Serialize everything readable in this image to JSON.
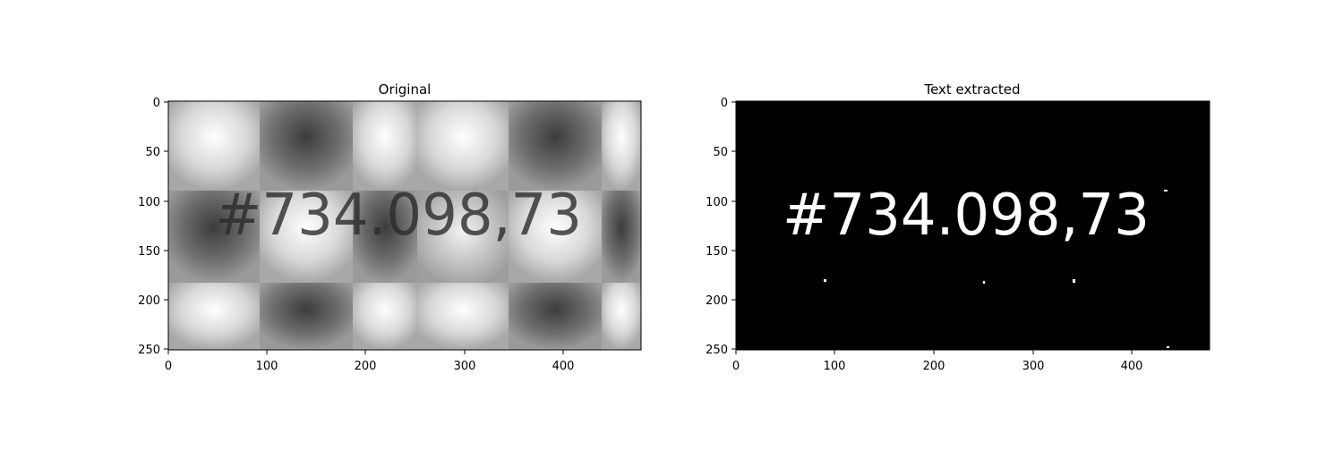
{
  "panels": [
    {
      "title": "Original",
      "x_ticks": [
        "0",
        "100",
        "200",
        "300",
        "400"
      ],
      "y_ticks": [
        "0",
        "50",
        "100",
        "150",
        "200",
        "250"
      ],
      "image_content": "#734.098,73"
    },
    {
      "title": "Text extracted",
      "x_ticks": [
        "0",
        "100",
        "200",
        "300",
        "400"
      ],
      "y_ticks": [
        "0",
        "50",
        "100",
        "150",
        "200",
        "250"
      ],
      "image_content": "#734.098,73"
    }
  ],
  "colors": {
    "background": "#ffffff",
    "axis": "#000000",
    "extracted_bg": "#000000",
    "extracted_ink": "#ffffff",
    "original_ink": "#2a2a2a"
  }
}
